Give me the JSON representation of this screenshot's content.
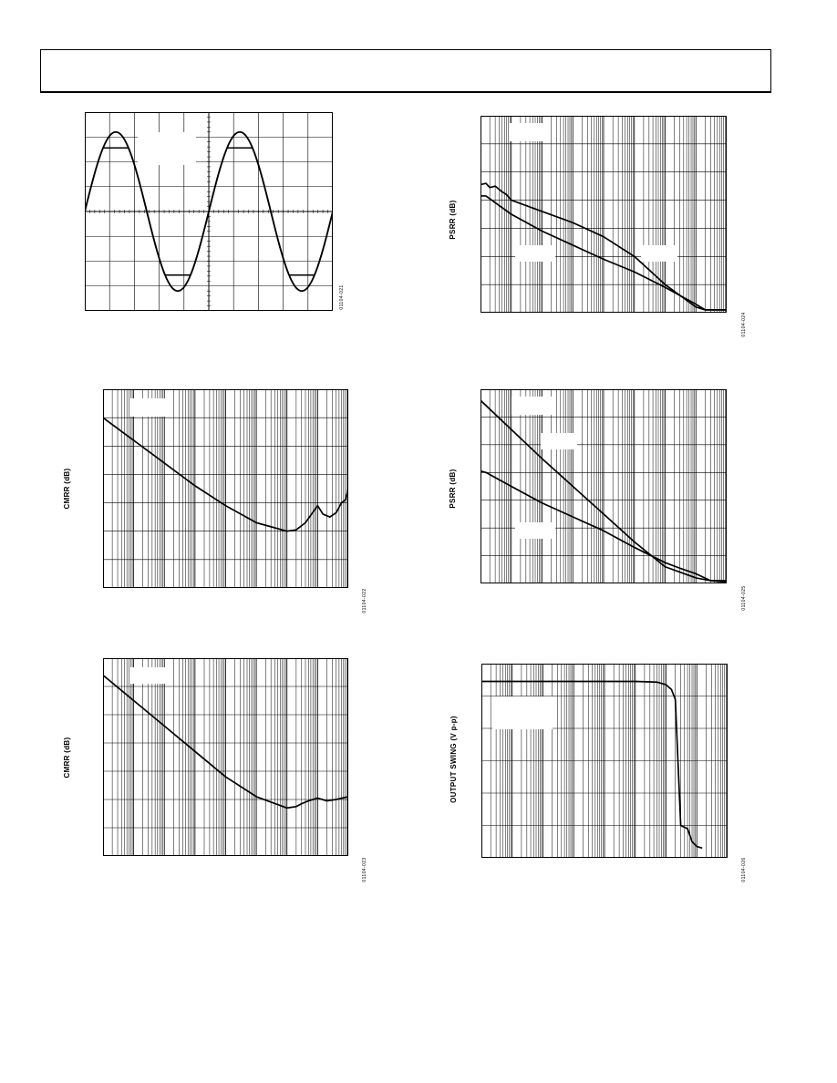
{
  "page": {
    "header": ""
  },
  "chart_data": [
    {
      "id": "sine",
      "type": "line",
      "fig_id": "01104-021",
      "ylabel": "",
      "grid": true,
      "series": [
        {
          "name": "",
          "kind": "sine",
          "periods": 2,
          "amplitude": 0.8,
          "clip": 0.64
        }
      ]
    },
    {
      "id": "cmrr1",
      "type": "line",
      "fig_id": "01104-022",
      "ylabel": "CMRR (dB)",
      "xscale": "log",
      "xlim": [
        1,
        100000000
      ],
      "ylim": [
        0,
        7
      ],
      "grid": true,
      "series": [
        {
          "name": "",
          "x": [
            1,
            10,
            100,
            1000,
            10000,
            100000,
            1000000,
            2000000,
            4000000,
            10000000,
            15000000,
            25000000,
            40000000,
            60000000,
            80000000,
            100000000
          ],
          "y": [
            6.0,
            5.2,
            4.4,
            3.6,
            2.9,
            2.3,
            2.0,
            2.05,
            2.3,
            2.9,
            2.6,
            2.5,
            2.65,
            3.0,
            3.1,
            3.5
          ]
        }
      ]
    },
    {
      "id": "cmrr2",
      "type": "line",
      "fig_id": "01104-023",
      "ylabel": "CMRR (dB)",
      "xscale": "log",
      "xlim": [
        1,
        100000000
      ],
      "ylim": [
        0,
        7
      ],
      "grid": true,
      "series": [
        {
          "name": "",
          "x": [
            1,
            10,
            100,
            1000,
            10000,
            100000,
            1000000,
            2000000,
            3000000,
            5000000,
            10000000,
            20000000,
            40000000,
            100000000
          ],
          "y": [
            6.4,
            5.5,
            4.6,
            3.7,
            2.8,
            2.1,
            1.7,
            1.75,
            1.85,
            1.95,
            2.05,
            1.95,
            2.0,
            2.1
          ]
        }
      ]
    },
    {
      "id": "psrr1",
      "type": "line",
      "fig_id": "01104-024",
      "ylabel": "PSRR (dB)",
      "xscale": "log",
      "xlim": [
        1,
        100000000
      ],
      "ylim": [
        0,
        7
      ],
      "grid": true,
      "series": [
        {
          "name": "",
          "x": [
            1,
            1.5,
            2,
            3,
            5,
            7,
            10,
            100,
            1000,
            10000,
            100000,
            1000000,
            10000000,
            20000000,
            50000000,
            100000000
          ],
          "y": [
            4.55,
            4.6,
            4.45,
            4.5,
            4.3,
            4.2,
            4.0,
            3.6,
            3.2,
            2.7,
            2.0,
            1.0,
            0.2,
            0.1,
            0.1,
            0.1
          ]
        },
        {
          "name": "",
          "x": [
            1,
            1.5,
            10,
            100,
            1000,
            10000,
            100000,
            1000000,
            10000000,
            20000000,
            50000000,
            100000000
          ],
          "y": [
            4.15,
            4.15,
            3.5,
            2.9,
            2.4,
            1.9,
            1.45,
            0.9,
            0.3,
            0.1,
            0.1,
            0.1
          ]
        }
      ]
    },
    {
      "id": "psrr2",
      "type": "line",
      "fig_id": "01104-025",
      "ylabel": "PSRR (dB)",
      "xscale": "log",
      "xlim": [
        1,
        100000000
      ],
      "ylim": [
        0,
        7
      ],
      "grid": true,
      "series": [
        {
          "name": "",
          "x": [
            1,
            10,
            100,
            1000,
            10000,
            100000,
            1000000,
            10000000,
            30000000,
            100000000
          ],
          "y": [
            6.6,
            5.55,
            4.5,
            3.5,
            2.5,
            1.5,
            0.6,
            0.2,
            0.1,
            0.1
          ]
        },
        {
          "name": "",
          "x": [
            1,
            1.5,
            10,
            100,
            1000,
            10000,
            100000,
            1000000,
            3000000,
            10000000,
            30000000,
            100000000
          ],
          "y": [
            4.05,
            4.0,
            3.5,
            2.9,
            2.4,
            1.9,
            1.3,
            0.75,
            0.55,
            0.35,
            0.1,
            0.05
          ]
        }
      ]
    },
    {
      "id": "swing",
      "type": "line",
      "fig_id": "01104-026",
      "ylabel": "OUTPUT SWING (V p-p)",
      "xscale": "log",
      "xlim": [
        1,
        100000000
      ],
      "ylim": [
        0,
        6
      ],
      "grid": true,
      "series": [
        {
          "name": "",
          "x": [
            1,
            10,
            100,
            1000,
            10000,
            100000,
            500000,
            1000000,
            1500000,
            2000000,
            3000000,
            5000000,
            7000000,
            10000000,
            15000000
          ],
          "y": [
            5.45,
            5.45,
            5.45,
            5.45,
            5.45,
            5.45,
            5.43,
            5.35,
            5.2,
            4.9,
            1.0,
            0.9,
            0.5,
            0.35,
            0.3
          ]
        }
      ]
    }
  ]
}
